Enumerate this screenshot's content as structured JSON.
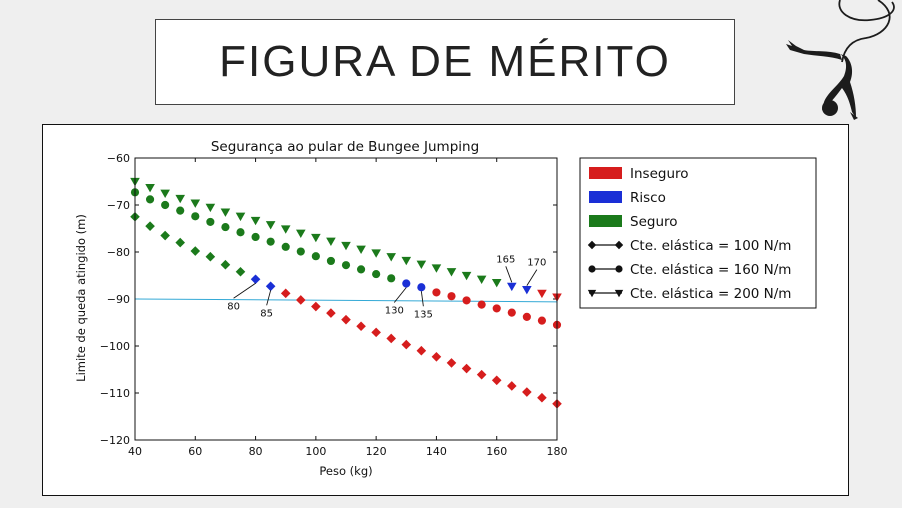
{
  "slide": {
    "title": "FIGURA DE MÉRITO"
  },
  "colors": {
    "inseguro": "#d61d1d",
    "risco": "#1a2fd6",
    "seguro": "#1b7a1b",
    "threshold": "#34a9d6"
  },
  "chart_data": {
    "type": "scatter",
    "title": "Segurança ao pular de Bungee Jumping",
    "xlabel": "Peso (kg)",
    "ylabel": "Limite de queda atingido (m)",
    "xlim": [
      40,
      180
    ],
    "ylim": [
      -120,
      -60
    ],
    "xticks": [
      40,
      60,
      80,
      100,
      120,
      140,
      160,
      180
    ],
    "yticks": [
      -60,
      -70,
      -80,
      -90,
      -100,
      -110,
      -120
    ],
    "xtick_labels": [
      "40",
      "60",
      "80",
      "100",
      "120",
      "140",
      "160",
      "180"
    ],
    "ytick_labels": [
      "−60",
      "−70",
      "−80",
      "−90",
      "−100",
      "−110",
      "−120"
    ],
    "threshold_line": {
      "y_start": -90.0,
      "y_end": -90.6
    },
    "legend": {
      "position": "right-outside",
      "entries": [
        {
          "label": "Inseguro",
          "kind": "patch",
          "color": "#d61d1d"
        },
        {
          "label": "Risco",
          "kind": "patch",
          "color": "#1a2fd6"
        },
        {
          "label": "Seguro",
          "kind": "patch",
          "color": "#1b7a1b"
        },
        {
          "label": "Cte. elástica = 100 N/m",
          "kind": "line",
          "marker": "diamond"
        },
        {
          "label": "Cte. elástica = 160 N/m",
          "kind": "line",
          "marker": "circle"
        },
        {
          "label": "Cte. elástica = 200 N/m",
          "kind": "line",
          "marker": "triangle-down"
        }
      ]
    },
    "series": [
      {
        "name": "Cte. elástica = 100 N/m",
        "marker": "diamond",
        "points": [
          {
            "x": 40,
            "y": -72.5,
            "status": "seguro"
          },
          {
            "x": 45,
            "y": -74.5,
            "status": "seguro"
          },
          {
            "x": 50,
            "y": -76.5,
            "status": "seguro"
          },
          {
            "x": 55,
            "y": -78.0,
            "status": "seguro"
          },
          {
            "x": 60,
            "y": -79.8,
            "status": "seguro"
          },
          {
            "x": 65,
            "y": -81.0,
            "status": "seguro"
          },
          {
            "x": 70,
            "y": -82.7,
            "status": "seguro"
          },
          {
            "x": 75,
            "y": -84.2,
            "status": "seguro"
          },
          {
            "x": 80,
            "y": -85.8,
            "status": "risco"
          },
          {
            "x": 85,
            "y": -87.3,
            "status": "risco"
          },
          {
            "x": 90,
            "y": -88.8,
            "status": "inseguro"
          },
          {
            "x": 95,
            "y": -90.2,
            "status": "inseguro"
          },
          {
            "x": 100,
            "y": -91.6,
            "status": "inseguro"
          },
          {
            "x": 105,
            "y": -93.0,
            "status": "inseguro"
          },
          {
            "x": 110,
            "y": -94.4,
            "status": "inseguro"
          },
          {
            "x": 115,
            "y": -95.8,
            "status": "inseguro"
          },
          {
            "x": 120,
            "y": -97.1,
            "status": "inseguro"
          },
          {
            "x": 125,
            "y": -98.4,
            "status": "inseguro"
          },
          {
            "x": 130,
            "y": -99.7,
            "status": "inseguro"
          },
          {
            "x": 135,
            "y": -101.0,
            "status": "inseguro"
          },
          {
            "x": 140,
            "y": -102.3,
            "status": "inseguro"
          },
          {
            "x": 145,
            "y": -103.6,
            "status": "inseguro"
          },
          {
            "x": 150,
            "y": -104.8,
            "status": "inseguro"
          },
          {
            "x": 155,
            "y": -106.1,
            "status": "inseguro"
          },
          {
            "x": 160,
            "y": -107.3,
            "status": "inseguro"
          },
          {
            "x": 165,
            "y": -108.5,
            "status": "inseguro"
          },
          {
            "x": 170,
            "y": -109.8,
            "status": "inseguro"
          },
          {
            "x": 175,
            "y": -111.0,
            "status": "inseguro"
          },
          {
            "x": 180,
            "y": -112.3,
            "status": "inseguro"
          }
        ]
      },
      {
        "name": "Cte. elástica = 160 N/m",
        "marker": "circle",
        "points": [
          {
            "x": 40,
            "y": -67.3,
            "status": "seguro"
          },
          {
            "x": 45,
            "y": -68.8,
            "status": "seguro"
          },
          {
            "x": 50,
            "y": -70.0,
            "status": "seguro"
          },
          {
            "x": 55,
            "y": -71.2,
            "status": "seguro"
          },
          {
            "x": 60,
            "y": -72.4,
            "status": "seguro"
          },
          {
            "x": 65,
            "y": -73.6,
            "status": "seguro"
          },
          {
            "x": 70,
            "y": -74.7,
            "status": "seguro"
          },
          {
            "x": 75,
            "y": -75.8,
            "status": "seguro"
          },
          {
            "x": 80,
            "y": -76.8,
            "status": "seguro"
          },
          {
            "x": 85,
            "y": -77.8,
            "status": "seguro"
          },
          {
            "x": 90,
            "y": -78.9,
            "status": "seguro"
          },
          {
            "x": 95,
            "y": -79.9,
            "status": "seguro"
          },
          {
            "x": 100,
            "y": -80.9,
            "status": "seguro"
          },
          {
            "x": 105,
            "y": -81.9,
            "status": "seguro"
          },
          {
            "x": 110,
            "y": -82.8,
            "status": "seguro"
          },
          {
            "x": 115,
            "y": -83.7,
            "status": "seguro"
          },
          {
            "x": 120,
            "y": -84.7,
            "status": "seguro"
          },
          {
            "x": 125,
            "y": -85.6,
            "status": "seguro"
          },
          {
            "x": 130,
            "y": -86.7,
            "status": "risco"
          },
          {
            "x": 135,
            "y": -87.5,
            "status": "risco"
          },
          {
            "x": 140,
            "y": -88.6,
            "status": "inseguro"
          },
          {
            "x": 145,
            "y": -89.4,
            "status": "inseguro"
          },
          {
            "x": 150,
            "y": -90.3,
            "status": "inseguro"
          },
          {
            "x": 155,
            "y": -91.2,
            "status": "inseguro"
          },
          {
            "x": 160,
            "y": -92.0,
            "status": "inseguro"
          },
          {
            "x": 165,
            "y": -92.9,
            "status": "inseguro"
          },
          {
            "x": 170,
            "y": -93.8,
            "status": "inseguro"
          },
          {
            "x": 175,
            "y": -94.6,
            "status": "inseguro"
          },
          {
            "x": 180,
            "y": -95.5,
            "status": "inseguro"
          }
        ]
      },
      {
        "name": "Cte. elástica = 200 N/m",
        "marker": "triangle-down",
        "points": [
          {
            "x": 40,
            "y": -65.0,
            "status": "seguro"
          },
          {
            "x": 45,
            "y": -66.3,
            "status": "seguro"
          },
          {
            "x": 50,
            "y": -67.5,
            "status": "seguro"
          },
          {
            "x": 55,
            "y": -68.6,
            "status": "seguro"
          },
          {
            "x": 60,
            "y": -69.6,
            "status": "seguro"
          },
          {
            "x": 65,
            "y": -70.5,
            "status": "seguro"
          },
          {
            "x": 70,
            "y": -71.5,
            "status": "seguro"
          },
          {
            "x": 75,
            "y": -72.4,
            "status": "seguro"
          },
          {
            "x": 80,
            "y": -73.3,
            "status": "seguro"
          },
          {
            "x": 85,
            "y": -74.2,
            "status": "seguro"
          },
          {
            "x": 90,
            "y": -75.1,
            "status": "seguro"
          },
          {
            "x": 95,
            "y": -76.0,
            "status": "seguro"
          },
          {
            "x": 100,
            "y": -76.9,
            "status": "seguro"
          },
          {
            "x": 105,
            "y": -77.7,
            "status": "seguro"
          },
          {
            "x": 110,
            "y": -78.6,
            "status": "seguro"
          },
          {
            "x": 115,
            "y": -79.4,
            "status": "seguro"
          },
          {
            "x": 120,
            "y": -80.2,
            "status": "seguro"
          },
          {
            "x": 125,
            "y": -81.0,
            "status": "seguro"
          },
          {
            "x": 130,
            "y": -81.8,
            "status": "seguro"
          },
          {
            "x": 135,
            "y": -82.6,
            "status": "seguro"
          },
          {
            "x": 140,
            "y": -83.4,
            "status": "seguro"
          },
          {
            "x": 145,
            "y": -84.2,
            "status": "seguro"
          },
          {
            "x": 150,
            "y": -85.0,
            "status": "seguro"
          },
          {
            "x": 155,
            "y": -85.8,
            "status": "seguro"
          },
          {
            "x": 160,
            "y": -86.5,
            "status": "seguro"
          },
          {
            "x": 165,
            "y": -87.3,
            "status": "risco"
          },
          {
            "x": 170,
            "y": -88.0,
            "status": "risco"
          },
          {
            "x": 175,
            "y": -88.8,
            "status": "inseguro"
          },
          {
            "x": 180,
            "y": -89.6,
            "status": "inseguro"
          }
        ]
      }
    ],
    "annotations": [
      {
        "text": "80",
        "x": 80,
        "y": -85.8
      },
      {
        "text": "85",
        "x": 85,
        "y": -87.3
      },
      {
        "text": "130",
        "x": 130,
        "y": -86.7
      },
      {
        "text": "135",
        "x": 135,
        "y": -87.5
      },
      {
        "text": "165",
        "x": 165,
        "y": -87.3
      },
      {
        "text": "170",
        "x": 170,
        "y": -88.0
      }
    ]
  }
}
